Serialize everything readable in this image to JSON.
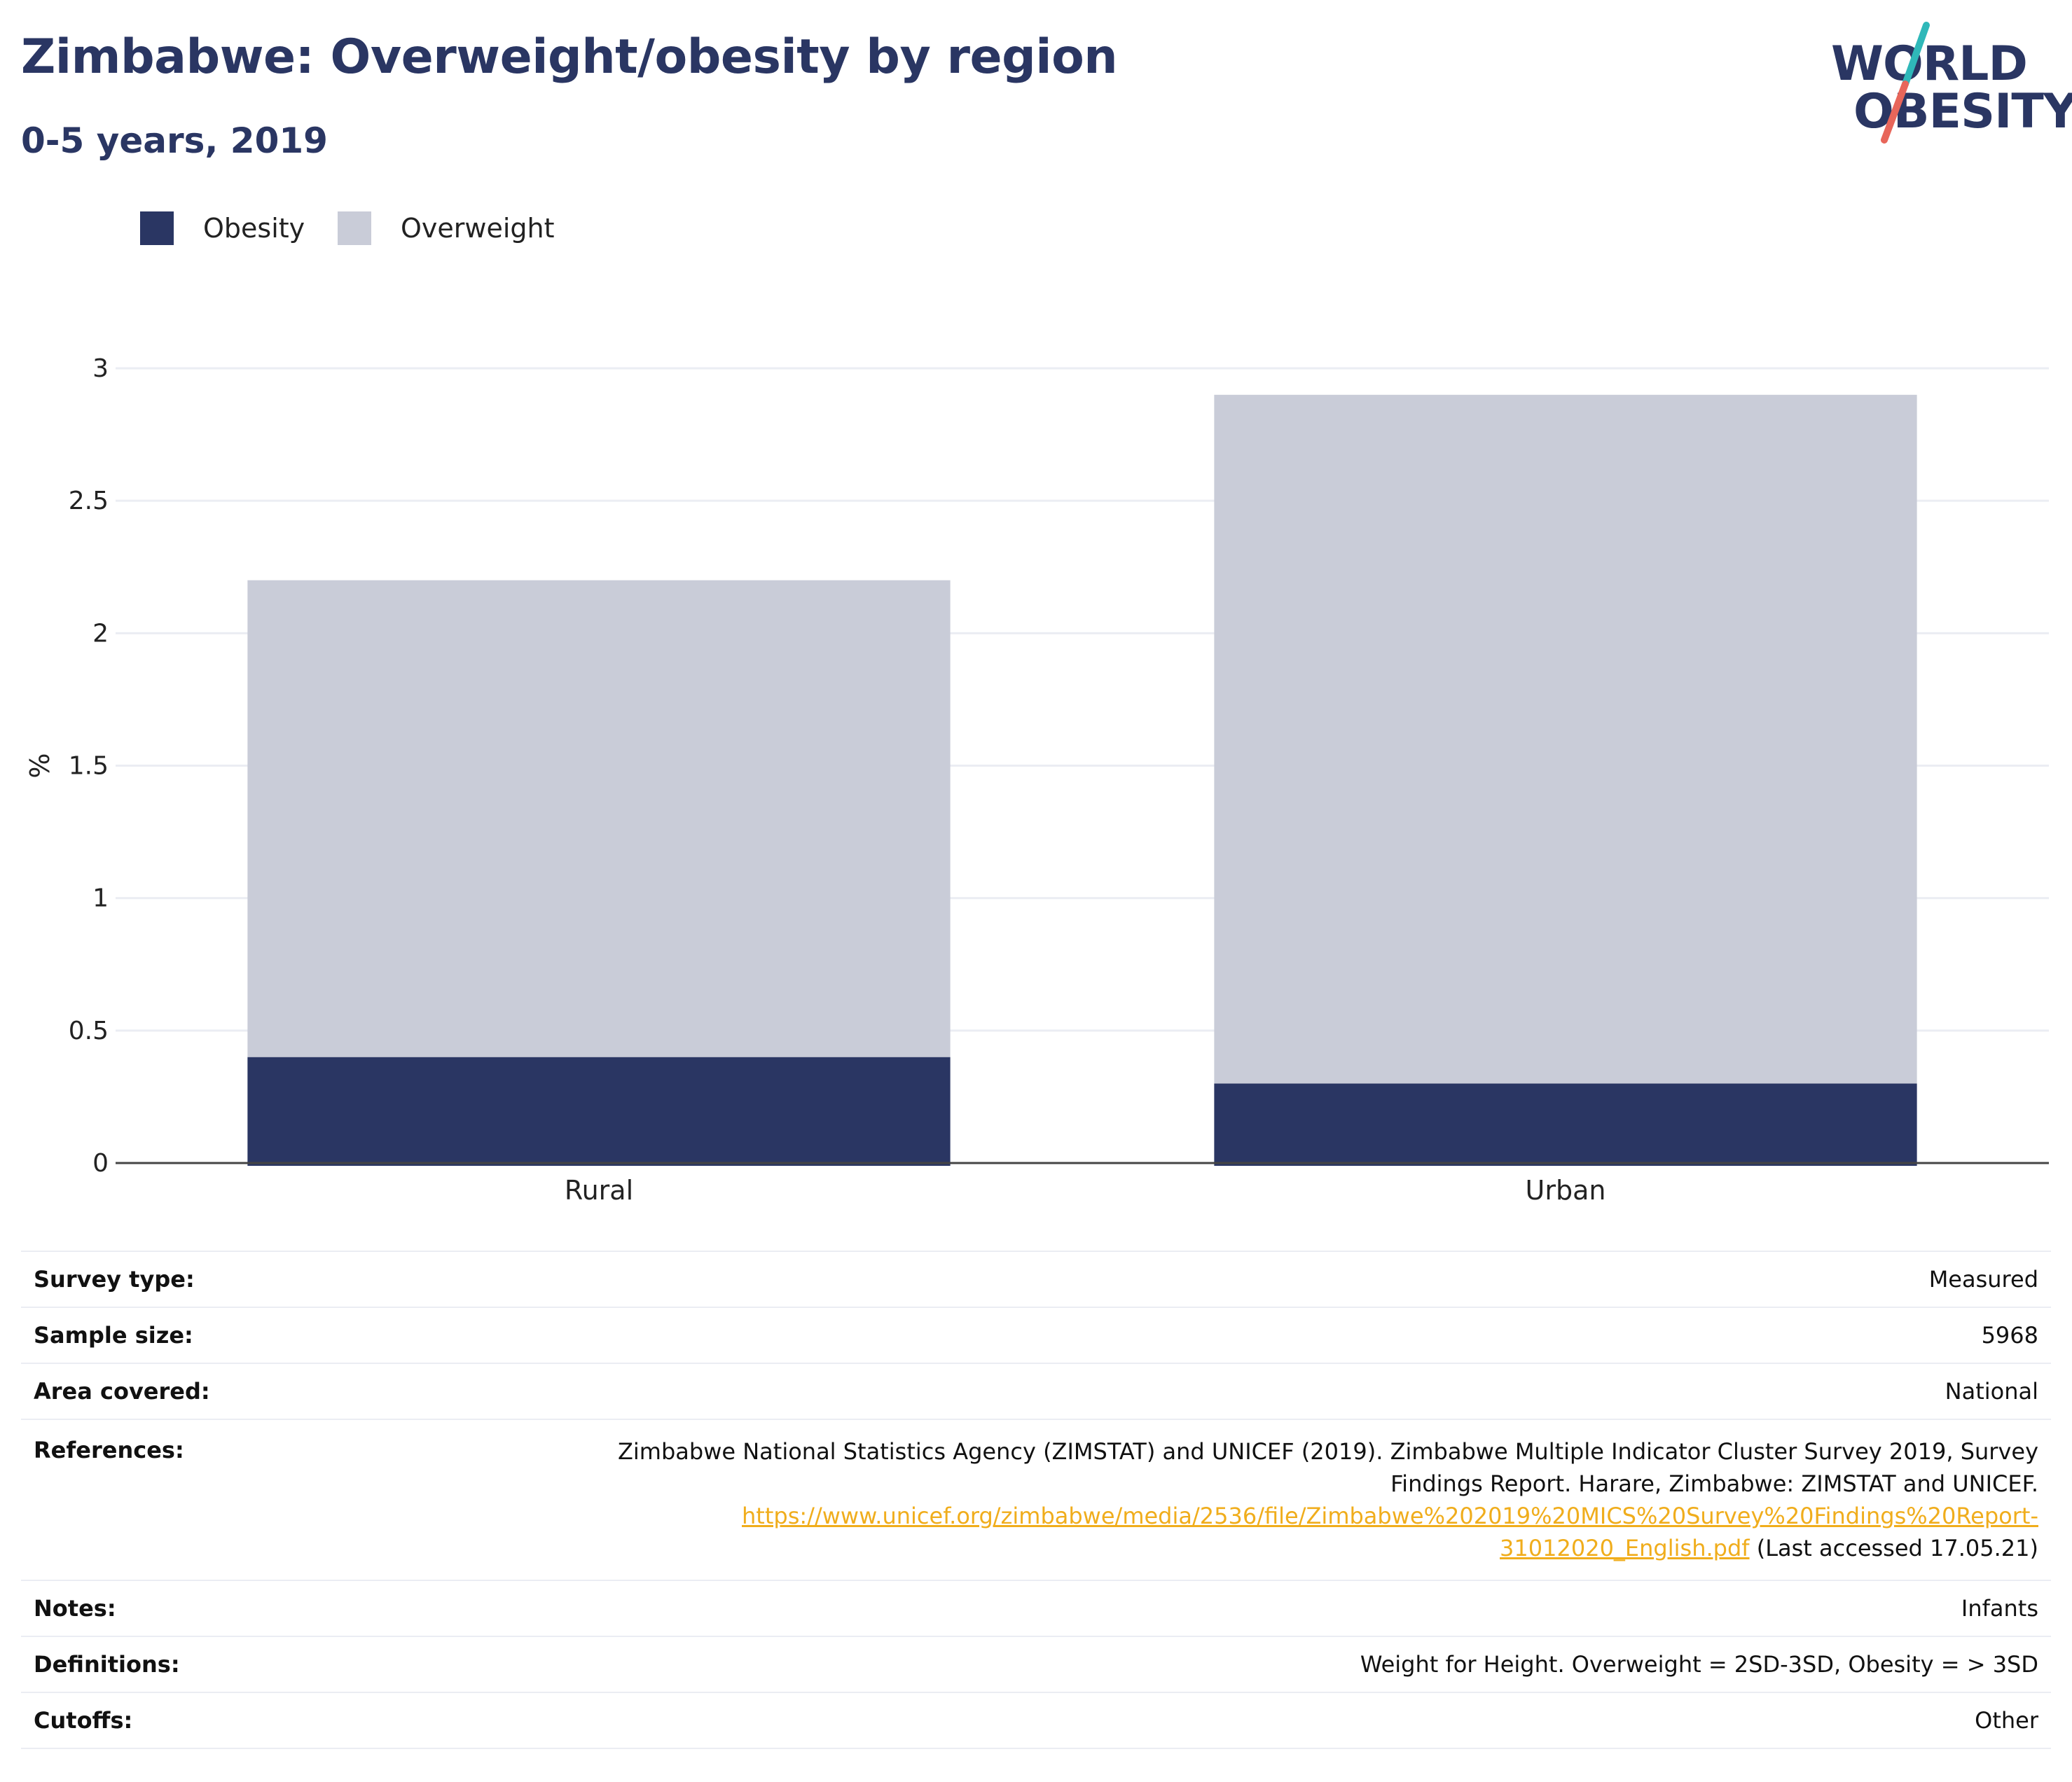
{
  "header": {
    "title": "Zimbabwe: Overweight/obesity by region",
    "subtitle": "0-5 years, 2019"
  },
  "logo": {
    "line1": "WORLD",
    "line2": "OBESITY",
    "accent_colors": [
      "#2fb8b9",
      "#e8665a"
    ]
  },
  "legend": {
    "items": [
      {
        "label": "Obesity",
        "color": "#2a3663"
      },
      {
        "label": "Overweight",
        "color": "#c9ccd8"
      }
    ]
  },
  "chart_data": {
    "type": "bar",
    "stacked": true,
    "categories": [
      "Rural",
      "Urban"
    ],
    "series": [
      {
        "name": "Obesity",
        "color": "#2a3663",
        "values": [
          0.4,
          0.3
        ]
      },
      {
        "name": "Overweight",
        "color": "#c9ccd8",
        "values": [
          1.8,
          2.6
        ]
      }
    ],
    "title": "Zimbabwe: Overweight/obesity by region",
    "subtitle": "0-5 years, 2019",
    "xlabel": "",
    "ylabel": "%",
    "ylim": [
      0,
      3
    ],
    "yticks": [
      0,
      0.5,
      1,
      1.5,
      2,
      2.5,
      3
    ],
    "ytick_labels": [
      "0",
      "0.5",
      "1",
      "1.5",
      "2",
      "2.5",
      "3"
    ],
    "grid": true,
    "legend_position": "top-left"
  },
  "info": {
    "survey_type": {
      "label": "Survey type:",
      "value": "Measured"
    },
    "sample_size": {
      "label": "Sample size:",
      "value": "5968"
    },
    "area_covered": {
      "label": "Area covered:",
      "value": "National"
    },
    "references": {
      "label": "References:",
      "text": "Zimbabwe National Statistics Agency (ZIMSTAT) and UNICEF (2019). Zimbabwe Multiple Indicator Cluster Survey 2019, Survey Findings Report. Harare, Zimbabwe: ZIMSTAT and UNICEF.",
      "link": "https://www.unicef.org/zimbabwe/media/2536/file/Zimbabwe%202019%20MICS%20Survey%20Findings%20Report-31012020_English.pdf",
      "suffix": "(Last accessed 17.05.21)"
    },
    "notes": {
      "label": "Notes:",
      "value": "Infants"
    },
    "definitions": {
      "label": "Definitions:",
      "value": "Weight for Height. Overweight = 2SD-3SD, Obesity = > 3SD"
    },
    "cutoffs": {
      "label": "Cutoffs:",
      "value": "Other"
    }
  }
}
